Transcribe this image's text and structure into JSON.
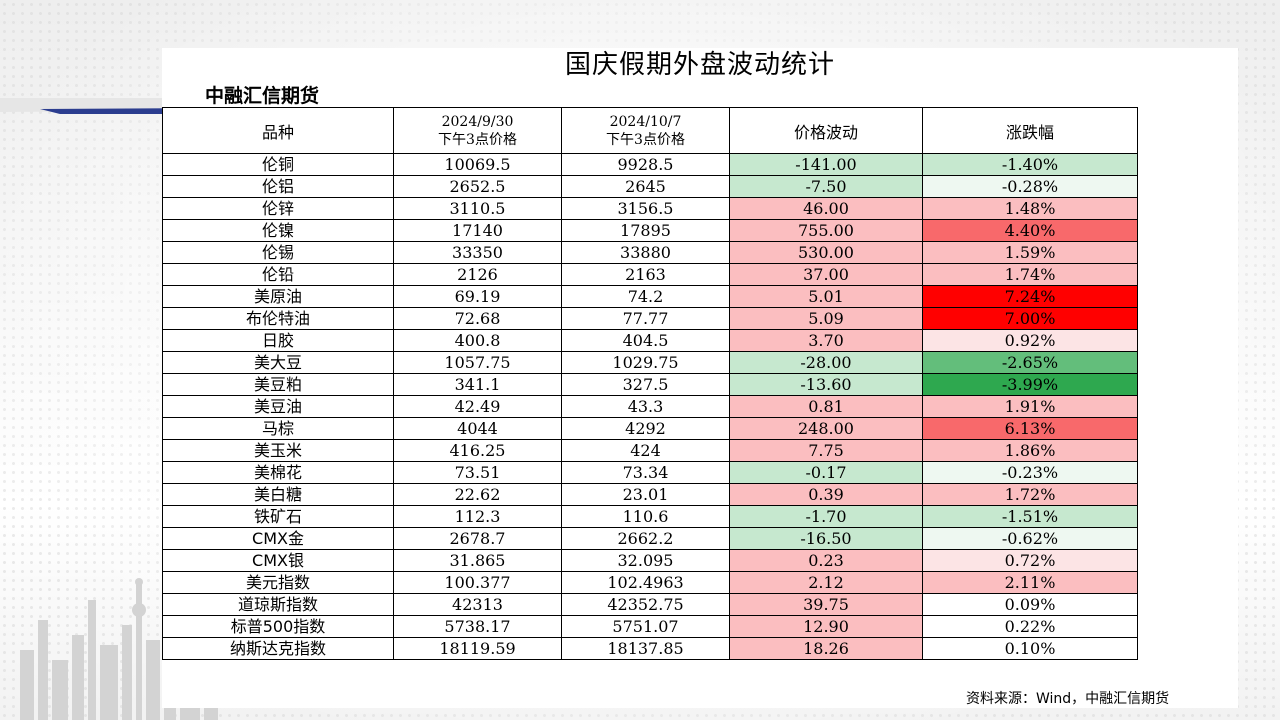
{
  "title": "国庆假期外盘波动统计",
  "company": "中融汇信期货",
  "source": "资料来源：Wind，中融汇信期货",
  "headers": {
    "name": "品种",
    "price1_date": "2024/9/30",
    "price1_sub": "下午3点价格",
    "price2_date": "2024/10/7",
    "price2_sub": "下午3点价格",
    "change": "价格波动",
    "pct": "涨跌幅"
  },
  "colors": {
    "red_strong": "#ff0000",
    "red_medium": "#f8696b",
    "red_light": "#fbbec0",
    "pink_light": "#fce4e5",
    "green_strong": "#2ea84f",
    "green_medium": "#63be7b",
    "green_light": "#c6e8cf",
    "green_pale": "#eef8f1",
    "white": "#ffffff"
  },
  "rows": [
    {
      "name": "伦铜",
      "p1": "10069.5",
      "p2": "9928.5",
      "change": "-141.00",
      "pct": "-1.40%",
      "pct_value": -1.4
    },
    {
      "name": "伦铝",
      "p1": "2652.5",
      "p2": "2645",
      "change": "-7.50",
      "pct": "-0.28%",
      "pct_value": -0.28
    },
    {
      "name": "伦锌",
      "p1": "3110.5",
      "p2": "3156.5",
      "change": "46.00",
      "pct": "1.48%",
      "pct_value": 1.48
    },
    {
      "name": "伦镍",
      "p1": "17140",
      "p2": "17895",
      "change": "755.00",
      "pct": "4.40%",
      "pct_value": 4.4
    },
    {
      "name": "伦锡",
      "p1": "33350",
      "p2": "33880",
      "change": "530.00",
      "pct": "1.59%",
      "pct_value": 1.59
    },
    {
      "name": "伦铅",
      "p1": "2126",
      "p2": "2163",
      "change": "37.00",
      "pct": "1.74%",
      "pct_value": 1.74
    },
    {
      "name": "美原油",
      "p1": "69.19",
      "p2": "74.2",
      "change": "5.01",
      "pct": "7.24%",
      "pct_value": 7.24
    },
    {
      "name": "布伦特油",
      "p1": "72.68",
      "p2": "77.77",
      "change": "5.09",
      "pct": "7.00%",
      "pct_value": 7.0
    },
    {
      "name": "日胶",
      "p1": "400.8",
      "p2": "404.5",
      "change": "3.70",
      "pct": "0.92%",
      "pct_value": 0.92
    },
    {
      "name": "美大豆",
      "p1": "1057.75",
      "p2": "1029.75",
      "change": "-28.00",
      "pct": "-2.65%",
      "pct_value": -2.65
    },
    {
      "name": "美豆粕",
      "p1": "341.1",
      "p2": "327.5",
      "change": "-13.60",
      "pct": "-3.99%",
      "pct_value": -3.99
    },
    {
      "name": "美豆油",
      "p1": "42.49",
      "p2": "43.3",
      "change": "0.81",
      "pct": "1.91%",
      "pct_value": 1.91
    },
    {
      "name": "马棕",
      "p1": "4044",
      "p2": "4292",
      "change": "248.00",
      "pct": "6.13%",
      "pct_value": 6.13
    },
    {
      "name": "美玉米",
      "p1": "416.25",
      "p2": "424",
      "change": "7.75",
      "pct": "1.86%",
      "pct_value": 1.86
    },
    {
      "name": "美棉花",
      "p1": "73.51",
      "p2": "73.34",
      "change": "-0.17",
      "pct": "-0.23%",
      "pct_value": -0.23
    },
    {
      "name": "美白糖",
      "p1": "22.62",
      "p2": "23.01",
      "change": "0.39",
      "pct": "1.72%",
      "pct_value": 1.72
    },
    {
      "name": "铁矿石",
      "p1": "112.3",
      "p2": "110.6",
      "change": "-1.70",
      "pct": "-1.51%",
      "pct_value": -1.51
    },
    {
      "name": "CMX金",
      "p1": "2678.7",
      "p2": "2662.2",
      "change": "-16.50",
      "pct": "-0.62%",
      "pct_value": -0.62
    },
    {
      "name": "CMX银",
      "p1": "31.865",
      "p2": "32.095",
      "change": "0.23",
      "pct": "0.72%",
      "pct_value": 0.72
    },
    {
      "name": "美元指数",
      "p1": "100.377",
      "p2": "102.4963",
      "change": "2.12",
      "pct": "2.11%",
      "pct_value": 2.11
    },
    {
      "name": "道琼斯指数",
      "p1": "42313",
      "p2": "42352.75",
      "change": "39.75",
      "pct": "0.09%",
      "pct_value": 0.09
    },
    {
      "name": "标普500指数",
      "p1": "5738.17",
      "p2": "5751.07",
      "change": "12.90",
      "pct": "0.22%",
      "pct_value": 0.22
    },
    {
      "name": "纳斯达克指数",
      "p1": "18119.59",
      "p2": "18137.85",
      "change": "18.26",
      "pct": "0.10%",
      "pct_value": 0.1
    }
  ]
}
